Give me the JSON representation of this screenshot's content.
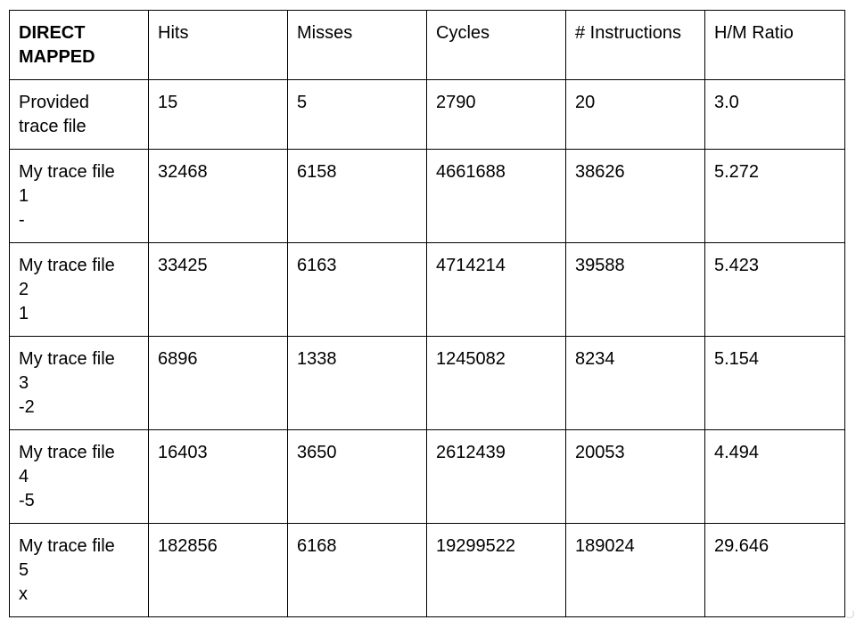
{
  "table": {
    "headers": [
      "DIRECT\nMAPPED",
      "Hits",
      "Misses",
      "Cycles",
      "# Instructions",
      "H/M Ratio"
    ],
    "rows": [
      [
        "Provided\ntrace file",
        "15",
        "5",
        "2790",
        "20",
        "3.0"
      ],
      [
        "My trace file\n1\n-",
        "32468",
        "6158",
        "4661688",
        "38626",
        "5.272"
      ],
      [
        "My trace file\n2\n1",
        "33425",
        "6163",
        "4714214",
        "39588",
        "5.423"
      ],
      [
        "My trace file\n3\n-2",
        "6896",
        "1338",
        "1245082",
        "8234",
        "5.154"
      ],
      [
        "My trace file\n4\n-5",
        "16403",
        "3650",
        "2612439",
        "20053",
        "4.494"
      ],
      [
        "My trace file\n5\nx",
        "182856",
        "6168",
        "19299522",
        "189024",
        "29.646"
      ]
    ]
  }
}
